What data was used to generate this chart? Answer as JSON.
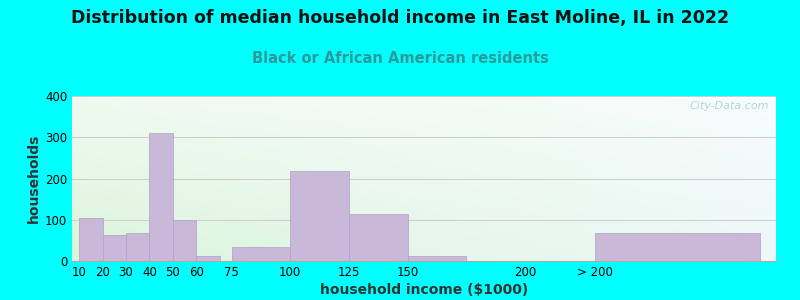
{
  "title": "Distribution of median household income in East Moline, IL in 2022",
  "subtitle": "Black or African American residents",
  "xlabel": "household income ($1000)",
  "ylabel": "households",
  "background_outer": "#00FFFF",
  "bar_color": "#c9b8d8",
  "bar_edge_color": "#b0a0c8",
  "categories": [
    "10",
    "20",
    "30",
    "40",
    "50",
    "60",
    "75",
    "100",
    "125",
    "150",
    "200",
    "> 200"
  ],
  "values": [
    105,
    62,
    68,
    310,
    100,
    12,
    35,
    218,
    115,
    12,
    0,
    68
  ],
  "positions": [
    10,
    20,
    30,
    40,
    50,
    60,
    75,
    100,
    125,
    150,
    200,
    230
  ],
  "widths": [
    10,
    10,
    10,
    10,
    10,
    10,
    25,
    25,
    25,
    25,
    30,
    70
  ],
  "ylim": [
    0,
    400
  ],
  "yticks": [
    0,
    100,
    200,
    300,
    400
  ],
  "title_fontsize": 12.5,
  "subtitle_fontsize": 10.5,
  "label_fontsize": 10,
  "tick_fontsize": 8.5,
  "subtitle_color": "#2a9a9a",
  "title_color": "#111111",
  "watermark": "City-Data.com",
  "watermark_color": "#aacccc",
  "grad_topleft": [
    0.94,
    0.98,
    0.94
  ],
  "grad_bottomleft": [
    0.86,
    0.96,
    0.86
  ],
  "grad_topright": [
    0.97,
    0.99,
    0.99
  ],
  "grad_bottomright": [
    0.93,
    0.97,
    0.97
  ]
}
